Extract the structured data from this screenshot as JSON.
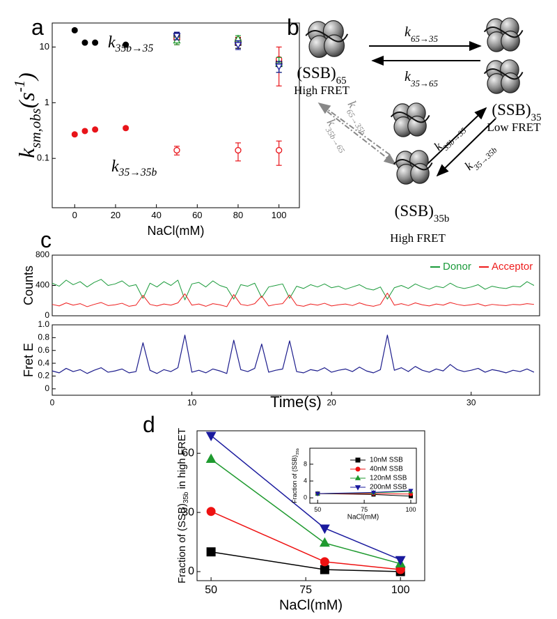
{
  "panels": [
    "a",
    "b",
    "c",
    "d"
  ],
  "diagram": {
    "states": [
      {
        "name": [
          "(SSB)",
          {
            "sub": "65"
          }
        ],
        "fret": "High FRET"
      },
      {
        "name": [
          "(SSB)",
          {
            "sub": "35"
          }
        ],
        "fret": "Low FRET"
      },
      {
        "name": [
          "(SSB)",
          {
            "sub": "35b"
          }
        ],
        "fret": "High FRET"
      }
    ],
    "rates": [
      [
        "k",
        {
          "sub": "65→35"
        }
      ],
      [
        "k",
        {
          "sub": "35→65"
        }
      ],
      [
        "k",
        {
          "sub": "65→35b"
        }
      ],
      [
        "k",
        {
          "sub": "35b→65"
        }
      ],
      [
        "k",
        {
          "sub": "35b→35"
        }
      ],
      [
        "k",
        {
          "sub": "35→35b"
        }
      ]
    ]
  },
  "chart_data": [
    {
      "type": "scatter",
      "xlabel": "NaCl(mM)",
      "ylabel": [
        "k",
        {
          "sub": "sm,obs"
        },
        "(s",
        {
          "sup": "-1"
        },
        ")"
      ],
      "xlim": [
        -11,
        110
      ],
      "xticks": [
        0,
        20,
        40,
        60,
        80,
        100
      ],
      "ylim": [
        0.013,
        27
      ],
      "yscale": "log",
      "yticks": [
        0.1,
        1,
        10
      ],
      "annotations": [
        [
          "k",
          {
            "sub": "35b→35"
          }
        ],
        [
          "k",
          {
            "sub": "35→35b"
          }
        ]
      ],
      "series": [
        {
          "color": "#000000",
          "x": [
            0,
            5,
            10,
            25,
            50,
            80,
            100
          ],
          "values": [
            20,
            12,
            12,
            11,
            15,
            12,
            5
          ],
          "errors": [
            1,
            0.5,
            0.5,
            0.5,
            3,
            2.5,
            1.5
          ],
          "marker": [
            "circle",
            "circle",
            "circle",
            "circle",
            "open-square",
            "open-square",
            "open-square"
          ]
        },
        {
          "color": "#e8141a",
          "x": [
            0,
            5,
            10,
            25,
            50,
            80,
            100
          ],
          "values": [
            0.27,
            0.31,
            0.33,
            0.35,
            0.14,
            0.14,
            0.14
          ],
          "errors": [
            0.015,
            0.015,
            0.015,
            0.02,
            0.025,
            0.05,
            0.065
          ],
          "marker": [
            "circle",
            "circle",
            "circle",
            "circle",
            "open-circle",
            "open-circle",
            "open-circle"
          ]
        },
        {
          "color": "#e8141a",
          "x": [
            50,
            80,
            100
          ],
          "values": [
            14,
            13,
            6
          ],
          "errors": [
            3,
            2,
            4
          ],
          "marker": "open-circle"
        },
        {
          "color": "#1f9a2f",
          "x": [
            50,
            80,
            100
          ],
          "values": [
            13,
            14,
            5
          ],
          "errors": [
            2,
            2,
            1.5
          ],
          "marker": "open-triangle-up"
        },
        {
          "color": "#1a1a9e",
          "x": [
            50,
            80,
            100
          ],
          "values": [
            16,
            11,
            4.5
          ],
          "errors": [
            2.5,
            2,
            1
          ],
          "marker": "open-triangle-down"
        }
      ]
    },
    {
      "type": "line",
      "ylabel": "Counts",
      "xlim": [
        0,
        34.9
      ],
      "ylim": [
        0,
        800
      ],
      "yticks": [
        0,
        400,
        800
      ],
      "legend": "upper right",
      "x": [
        0,
        0.5,
        1,
        1.5,
        2,
        2.5,
        3,
        3.5,
        4,
        4.5,
        5,
        5.5,
        6,
        6.5,
        7,
        7.5,
        8,
        8.5,
        9,
        9.5,
        10,
        10.5,
        11,
        11.5,
        12,
        12.5,
        13,
        13.5,
        14,
        14.5,
        15,
        15.5,
        16,
        16.5,
        17,
        17.5,
        18,
        18.5,
        19,
        19.5,
        20,
        20.5,
        21,
        21.5,
        22,
        22.5,
        23,
        23.5,
        24,
        24.5,
        25,
        25.5,
        26,
        26.5,
        27,
        27.5,
        28,
        28.5,
        29,
        29.5,
        30,
        30.5,
        31,
        31.5,
        32,
        32.5,
        33,
        33.5,
        34,
        34.5
      ],
      "series": [
        {
          "name": "Donor",
          "color": "#1a9a3a",
          "values": [
            430,
            390,
            470,
            410,
            450,
            380,
            440,
            480,
            400,
            420,
            460,
            390,
            410,
            230,
            430,
            380,
            450,
            400,
            470,
            210,
            420,
            440,
            380,
            460,
            400,
            370,
            220,
            410,
            390,
            430,
            240,
            380,
            400,
            420,
            230,
            390,
            360,
            410,
            380,
            420,
            370,
            390,
            350,
            380,
            410,
            360,
            340,
            380,
            220,
            370,
            400,
            360,
            420,
            380,
            350,
            390,
            370,
            430,
            380,
            360,
            380,
            410,
            350,
            390,
            370,
            360,
            390,
            380,
            450,
            400
          ]
        },
        {
          "name": "Acceptor",
          "color": "#ee1c1c",
          "values": [
            150,
            130,
            170,
            140,
            160,
            120,
            150,
            175,
            135,
            145,
            165,
            125,
            140,
            270,
            150,
            130,
            155,
            140,
            170,
            290,
            140,
            155,
            125,
            160,
            145,
            120,
            280,
            150,
            135,
            160,
            260,
            130,
            150,
            160,
            275,
            140,
            125,
            155,
            140,
            165,
            130,
            145,
            155,
            135,
            170,
            140,
            125,
            150,
            300,
            140,
            160,
            135,
            170,
            145,
            130,
            155,
            140,
            175,
            150,
            135,
            145,
            160,
            130,
            150,
            140,
            135,
            150,
            145,
            160,
            150
          ]
        }
      ]
    },
    {
      "type": "line",
      "ylabel": "Fret E",
      "xlabel": "Time(s)",
      "xlim": [
        0,
        34.9
      ],
      "xticks": [
        0,
        10,
        20,
        30
      ],
      "ylim": [
        -0.1,
        1
      ],
      "yticks": [
        0,
        0.2,
        0.4,
        0.6,
        0.8,
        {
          "value": 1,
          "label": "1.0"
        }
      ],
      "x": [
        0,
        0.5,
        1,
        1.5,
        2,
        2.5,
        3,
        3.5,
        4,
        4.5,
        5,
        5.5,
        6,
        6.5,
        7,
        7.5,
        8,
        8.5,
        9,
        9.5,
        10,
        10.5,
        11,
        11.5,
        12,
        12.5,
        13,
        13.5,
        14,
        14.5,
        15,
        15.5,
        16,
        16.5,
        17,
        17.5,
        18,
        18.5,
        19,
        19.5,
        20,
        20.5,
        21,
        21.5,
        22,
        22.5,
        23,
        23.5,
        24,
        24.5,
        25,
        25.5,
        26,
        26.5,
        27,
        27.5,
        28,
        28.5,
        29,
        29.5,
        30,
        30.5,
        31,
        31.5,
        32,
        32.5,
        33,
        33.5,
        34,
        34.5
      ],
      "series": [
        {
          "color": "#1c1c8c",
          "values": [
            0.28,
            0.25,
            0.32,
            0.27,
            0.3,
            0.24,
            0.29,
            0.33,
            0.26,
            0.28,
            0.31,
            0.25,
            0.27,
            0.72,
            0.29,
            0.24,
            0.3,
            0.27,
            0.33,
            0.84,
            0.26,
            0.29,
            0.25,
            0.31,
            0.28,
            0.24,
            0.76,
            0.3,
            0.27,
            0.32,
            0.7,
            0.26,
            0.29,
            0.31,
            0.75,
            0.27,
            0.25,
            0.3,
            0.28,
            0.33,
            0.26,
            0.29,
            0.31,
            0.27,
            0.34,
            0.28,
            0.25,
            0.3,
            0.84,
            0.29,
            0.33,
            0.27,
            0.35,
            0.29,
            0.26,
            0.31,
            0.28,
            0.38,
            0.3,
            0.27,
            0.29,
            0.32,
            0.26,
            0.3,
            0.28,
            0.25,
            0.29,
            0.27,
            0.31,
            0.26
          ]
        }
      ]
    },
    {
      "type": "line",
      "ylabel": [
        "Fraction of (SSB)",
        {
          "sub": "35b"
        },
        " in high FRET"
      ],
      "xlabel": "NaCl(mM)",
      "xlim": [
        46.3,
        106.4
      ],
      "xticks": [
        50,
        75,
        100
      ],
      "ylim": [
        -4.6,
        71.4
      ],
      "yticks": [
        0,
        30,
        60
      ],
      "legend": "upper right",
      "x": [
        50,
        80,
        100
      ],
      "series": [
        {
          "name": "10nM SSB",
          "color": "#000000",
          "marker": "square",
          "values": [
            10,
            1,
            0
          ]
        },
        {
          "name": "40nM SSB",
          "color": "#ee1111",
          "marker": "circle",
          "values": [
            30.5,
            5,
            1
          ]
        },
        {
          "name": "120nM SSB",
          "color": "#1f9a2f",
          "marker": "triangle-up",
          "values": [
            57,
            14.5,
            4
          ]
        },
        {
          "name": "200nM SSB",
          "color": "#1a1a9e",
          "marker": "triangle-down",
          "values": [
            69,
            22,
            6
          ]
        }
      ]
    },
    {
      "type": "line",
      "ylabel": [
        "Fraction of (SSB)",
        {
          "sub": "35b"
        }
      ],
      "xlabel": "NaCl(mM)",
      "xlim": [
        45.8,
        103
      ],
      "xticks": [
        50,
        75,
        100
      ],
      "ylim": [
        -1.3,
        11.8
      ],
      "yticks": [
        0,
        4,
        8
      ],
      "x": [
        50,
        80,
        100
      ],
      "series": [
        {
          "color": "#000000",
          "marker": "square",
          "values": [
            1,
            0.8,
            0.4
          ]
        },
        {
          "color": "#ee1111",
          "marker": "circle",
          "values": [
            1,
            1,
            0.9
          ]
        },
        {
          "color": "#1f9a2f",
          "marker": "triangle-up",
          "values": [
            1,
            1.2,
            1.5
          ]
        },
        {
          "color": "#1a1a9e",
          "marker": "triangle-down",
          "values": [
            1,
            1.3,
            1.7
          ]
        }
      ]
    }
  ]
}
